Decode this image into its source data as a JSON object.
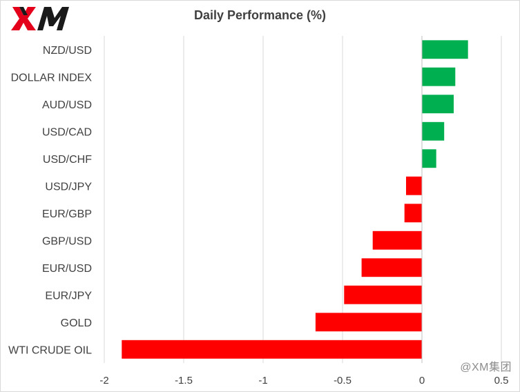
{
  "brand": {
    "logo_text": "XM",
    "watermark": "@XM集团"
  },
  "chart_data": {
    "type": "bar",
    "orientation": "horizontal",
    "title": "Daily Performance (%)",
    "xlabel": "",
    "ylabel": "",
    "categories": [
      "NZD/USD",
      "DOLLAR INDEX",
      "AUD/USD",
      "USD/CAD",
      "USD/CHF",
      "USD/JPY",
      "EUR/GBP",
      "GBP/USD",
      "EUR/USD",
      "EUR/JPY",
      "GOLD",
      "WTI CRUDE OIL"
    ],
    "values": [
      0.29,
      0.21,
      0.2,
      0.14,
      0.09,
      -0.1,
      -0.11,
      -0.31,
      -0.38,
      -0.49,
      -0.67,
      -1.89
    ],
    "xlim": [
      -2,
      0.5
    ],
    "xticks": [
      -2,
      -1.5,
      -1,
      -0.5,
      0,
      0.5
    ],
    "grid": "vertical",
    "colors": {
      "positive": "#00b050",
      "negative": "#ff0000",
      "grid": "#d9d9d9",
      "text": "#404040"
    }
  }
}
